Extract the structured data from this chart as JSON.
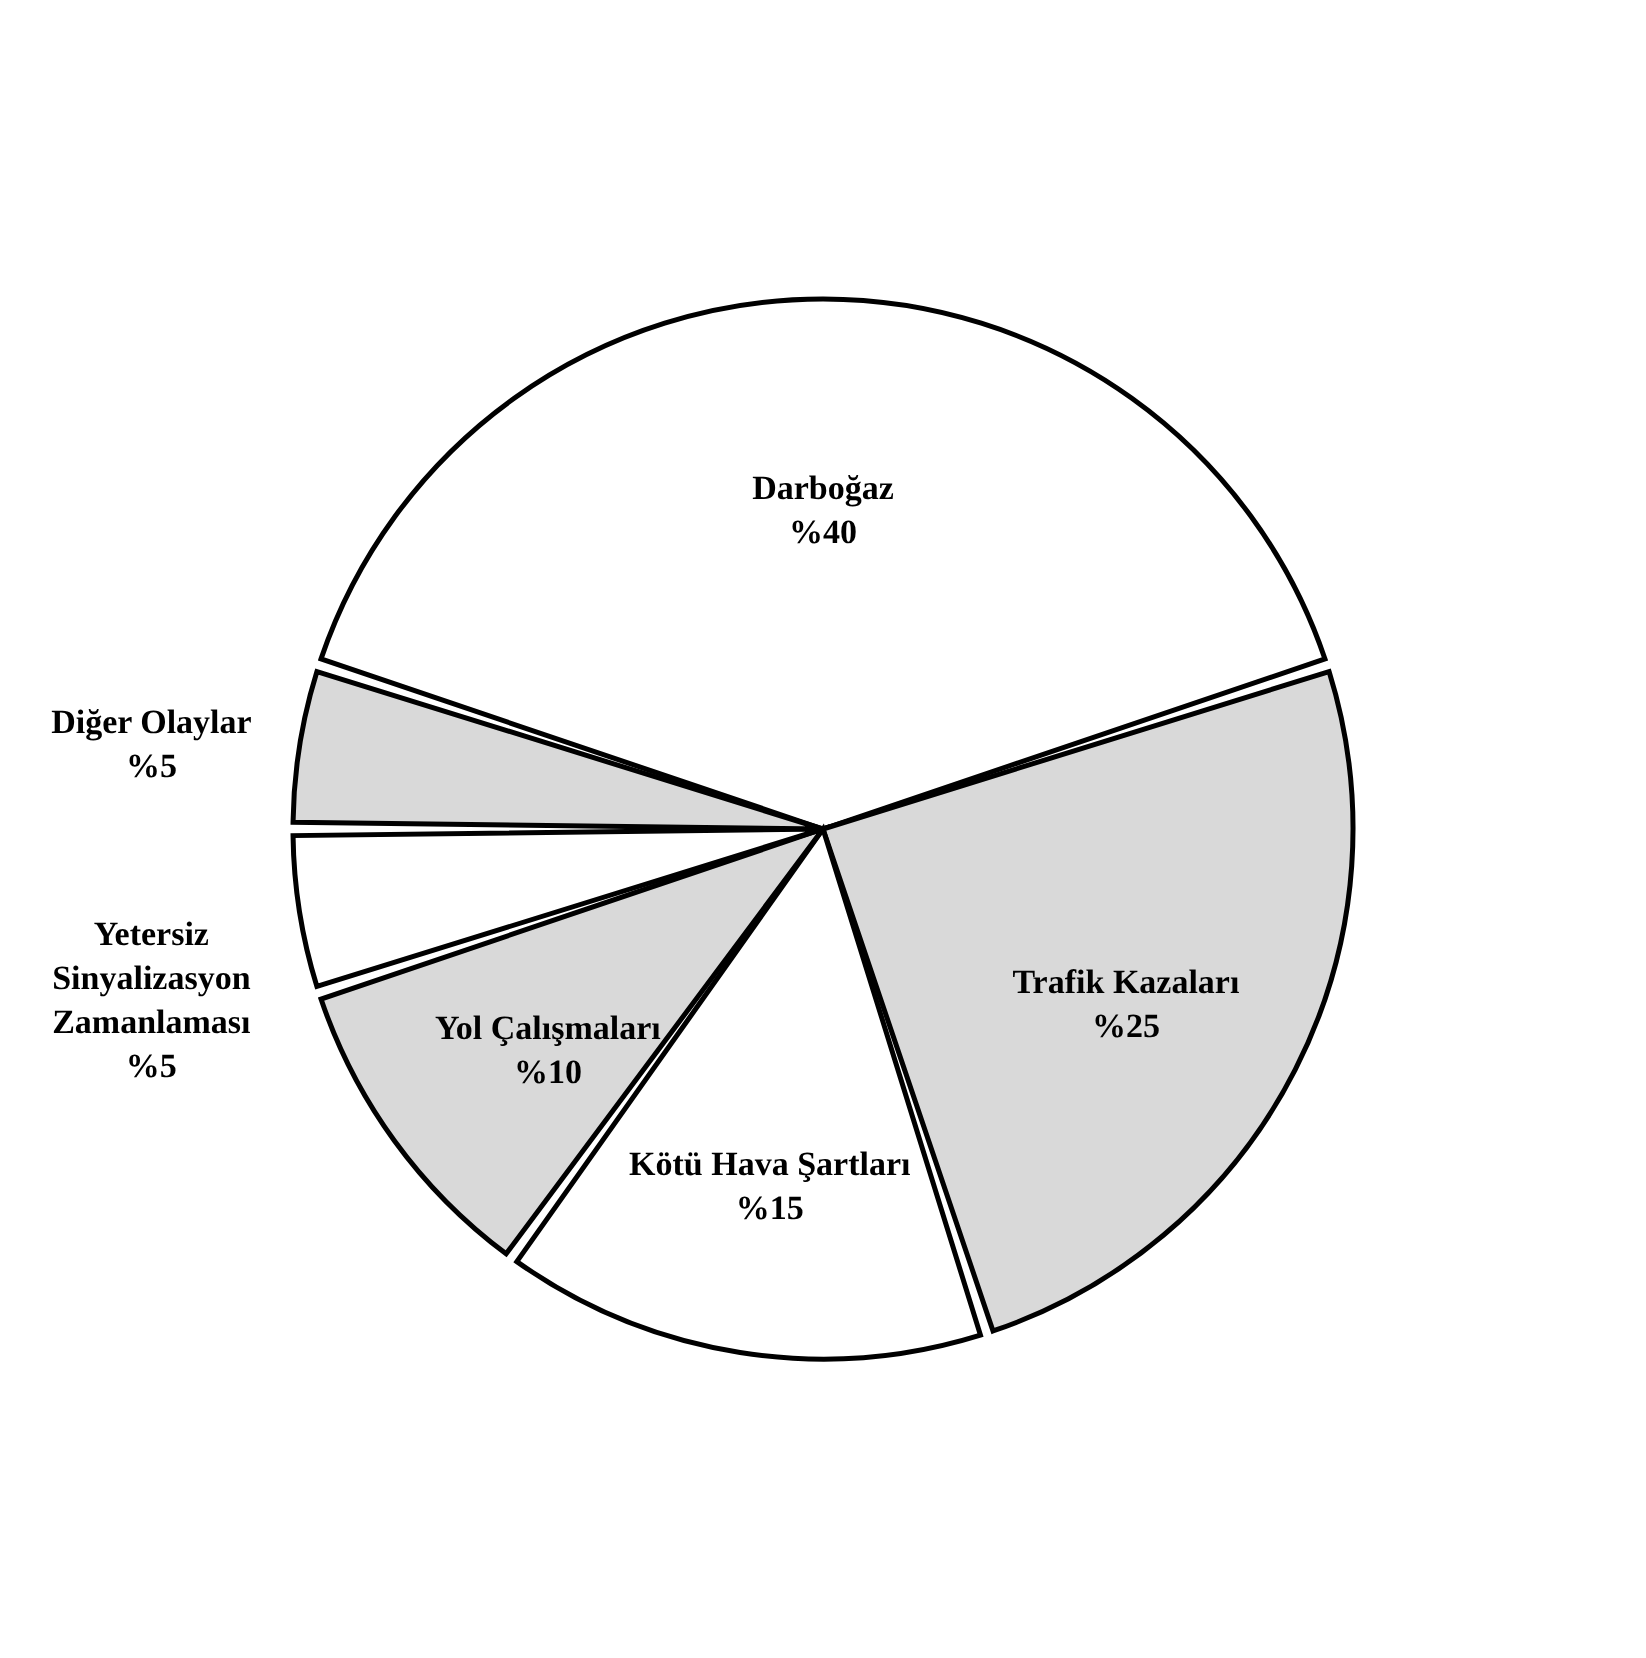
{
  "chart_data": {
    "type": "pie",
    "categories": [
      "Darboğaz",
      "Trafik Kazaları",
      "Kötü Hava Şartları",
      "Yol Çalışmaları",
      "Yetersiz Sinyalizasyon Zamanlaması",
      "Diğer Olaylar"
    ],
    "values": [
      40,
      25,
      15,
      10,
      5,
      5
    ],
    "value_labels": [
      "%40",
      "%25",
      "%15",
      "%10",
      "%5",
      "%5"
    ],
    "colors": [
      "#ffffff",
      "#d9d9d9",
      "#ffffff",
      "#d9d9d9",
      "#ffffff",
      "#d9d9d9"
    ],
    "legend": false
  }
}
